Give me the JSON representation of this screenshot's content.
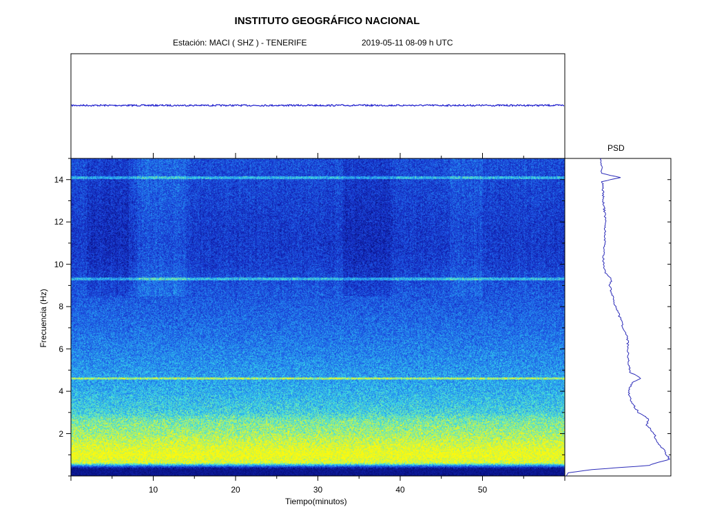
{
  "header": {
    "title": "INSTITUTO GEOGRÁFICO NACIONAL",
    "station": "Estación:  MACI ( SHZ ) - TENERIFE",
    "datetime": "2019-05-11  08-09 h UTC"
  },
  "psd_title": "PSD",
  "colors": {
    "seismogram_trace": "#1a1acc",
    "psd_curve": "#2a2ab8",
    "spectrogram_low": "#0a1aa0",
    "spectrogram_mid": "#2a8ae6",
    "spectrogram_high": "#e8f020"
  },
  "chart_data": [
    {
      "type": "line",
      "name": "seismogram",
      "x_range": [
        0,
        60
      ],
      "baseline": "flat trace with small noise"
    },
    {
      "type": "heatmap",
      "name": "spectrogram",
      "xlabel": "Tiempo(minutos)",
      "ylabel": "Frecuencia  (Hz)",
      "xlim": [
        0,
        60
      ],
      "ylim": [
        0,
        15
      ],
      "x_ticks": [
        10,
        20,
        30,
        40,
        50
      ],
      "y_ticks": [
        2,
        4,
        6,
        8,
        10,
        12,
        14
      ],
      "frequency_profile": [
        {
          "f": 0.0,
          "level": 0.05
        },
        {
          "f": 0.35,
          "level": 0.1
        },
        {
          "f": 0.6,
          "level": 0.92
        },
        {
          "f": 1.0,
          "level": 0.98
        },
        {
          "f": 1.5,
          "level": 0.9
        },
        {
          "f": 2.0,
          "level": 0.82
        },
        {
          "f": 2.6,
          "level": 0.76
        },
        {
          "f": 3.0,
          "level": 0.66
        },
        {
          "f": 4.0,
          "level": 0.58
        },
        {
          "f": 5.0,
          "level": 0.52
        },
        {
          "f": 6.0,
          "level": 0.47
        },
        {
          "f": 7.0,
          "level": 0.42
        },
        {
          "f": 8.0,
          "level": 0.38
        },
        {
          "f": 9.0,
          "level": 0.34
        },
        {
          "f": 10.0,
          "level": 0.28
        },
        {
          "f": 11.0,
          "level": 0.26
        },
        {
          "f": 12.0,
          "level": 0.27
        },
        {
          "f": 13.0,
          "level": 0.29
        },
        {
          "f": 14.0,
          "level": 0.31
        },
        {
          "f": 15.0,
          "level": 0.33
        }
      ],
      "spectral_lines_hz": [
        14.1,
        9.3,
        4.6
      ]
    },
    {
      "type": "line",
      "name": "PSD",
      "title": "PSD",
      "ylim": [
        0,
        15
      ],
      "points": [
        {
          "f": 0.0,
          "p": 0.0
        },
        {
          "f": 0.15,
          "p": 0.02
        },
        {
          "f": 0.3,
          "p": 0.25
        },
        {
          "f": 0.5,
          "p": 0.8
        },
        {
          "f": 0.8,
          "p": 1.0
        },
        {
          "f": 1.2,
          "p": 0.95
        },
        {
          "f": 1.6,
          "p": 0.88
        },
        {
          "f": 2.0,
          "p": 0.85
        },
        {
          "f": 2.4,
          "p": 0.78
        },
        {
          "f": 2.7,
          "p": 0.8
        },
        {
          "f": 3.0,
          "p": 0.7
        },
        {
          "f": 3.5,
          "p": 0.63
        },
        {
          "f": 4.0,
          "p": 0.6
        },
        {
          "f": 4.4,
          "p": 0.64
        },
        {
          "f": 4.6,
          "p": 0.72
        },
        {
          "f": 4.9,
          "p": 0.62
        },
        {
          "f": 5.5,
          "p": 0.6
        },
        {
          "f": 6.0,
          "p": 0.6
        },
        {
          "f": 6.6,
          "p": 0.59
        },
        {
          "f": 7.0,
          "p": 0.55
        },
        {
          "f": 7.5,
          "p": 0.52
        },
        {
          "f": 8.0,
          "p": 0.48
        },
        {
          "f": 8.5,
          "p": 0.45
        },
        {
          "f": 9.0,
          "p": 0.42
        },
        {
          "f": 9.3,
          "p": 0.44
        },
        {
          "f": 9.6,
          "p": 0.38
        },
        {
          "f": 10.0,
          "p": 0.36
        },
        {
          "f": 11.0,
          "p": 0.37
        },
        {
          "f": 12.0,
          "p": 0.38
        },
        {
          "f": 13.0,
          "p": 0.36
        },
        {
          "f": 13.9,
          "p": 0.35
        },
        {
          "f": 14.1,
          "p": 0.52
        },
        {
          "f": 14.3,
          "p": 0.34
        },
        {
          "f": 15.0,
          "p": 0.34
        }
      ]
    }
  ]
}
